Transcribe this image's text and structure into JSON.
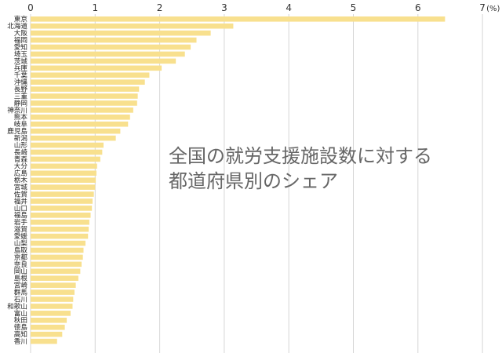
{
  "chart_data": {
    "type": "bar",
    "orientation": "horizontal",
    "title_lines": [
      "全国の就労支援施設数に対する",
      "都道府県別のシェア"
    ],
    "unit_label": "(%)",
    "xlim": [
      0,
      7
    ],
    "x_ticks": [
      "0",
      "1",
      "2",
      "3",
      "4",
      "5",
      "6",
      "7"
    ],
    "grid": true,
    "bar_color": "#f8e08e",
    "grid_color": "#d6d6d6",
    "categories": [
      "東京",
      "北海道",
      "大阪",
      "福岡",
      "愛知",
      "埼玉",
      "茨城",
      "兵庫",
      "千葉",
      "沖縄",
      "長野",
      "三重",
      "静岡",
      "神奈川",
      "熊本",
      "岐阜",
      "鹿児島",
      "新潟",
      "山形",
      "長崎",
      "青森",
      "大分",
      "広島",
      "栃木",
      "宮城",
      "佐賀",
      "福井",
      "山口",
      "福島",
      "岩手",
      "滋賀",
      "愛媛",
      "山梨",
      "島取",
      "京都",
      "奈良",
      "岡山",
      "島根",
      "宮崎",
      "群馬",
      "石川",
      "和歌山",
      "富山",
      "秋田",
      "徳島",
      "高知",
      "香川"
    ],
    "values": [
      6.42,
      3.14,
      2.79,
      2.57,
      2.48,
      2.39,
      2.25,
      2.03,
      1.84,
      1.77,
      1.68,
      1.66,
      1.65,
      1.59,
      1.54,
      1.51,
      1.39,
      1.32,
      1.13,
      1.11,
      1.08,
      1.03,
      1.02,
      1.01,
      1.0,
      0.98,
      0.96,
      0.95,
      0.93,
      0.91,
      0.9,
      0.89,
      0.85,
      0.82,
      0.81,
      0.79,
      0.77,
      0.74,
      0.7,
      0.68,
      0.66,
      0.65,
      0.62,
      0.56,
      0.53,
      0.49,
      0.41
    ]
  }
}
